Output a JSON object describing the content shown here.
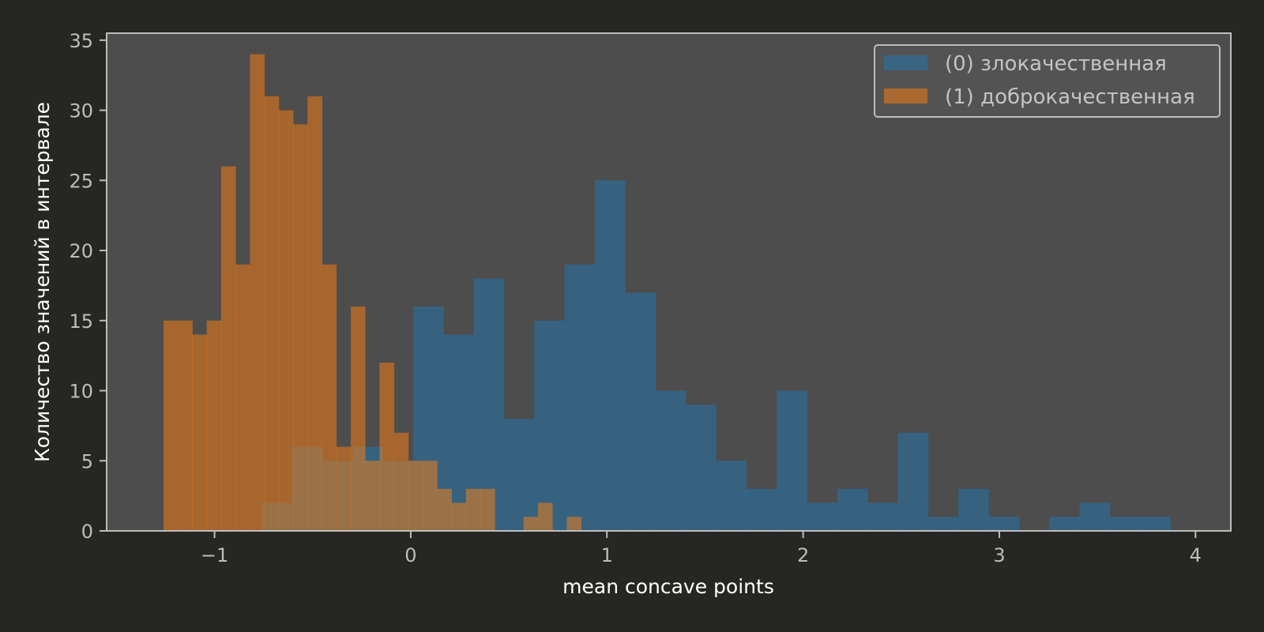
{
  "chart_data": {
    "type": "bar",
    "subtype": "histogram-overlay",
    "title": "",
    "xlabel": "mean concave points",
    "ylabel": "Количество значений в интервале",
    "xlim": [
      -1.55,
      4.18
    ],
    "ylim": [
      0,
      35.5
    ],
    "xticks": [
      -1,
      0,
      1,
      2,
      3,
      4
    ],
    "xtick_labels": [
      "−1",
      "0",
      "1",
      "2",
      "3",
      "4"
    ],
    "yticks": [
      0,
      5,
      10,
      15,
      20,
      25,
      30,
      35
    ],
    "grid": false,
    "legend": "top-right",
    "colors": {
      "figure_bg": "#262722",
      "plot_bg": "#4d4d4d",
      "frame": "#bdbdbd",
      "legend_bg": "#555555"
    },
    "series": [
      {
        "name": "(0) злокачественная",
        "color": "#1f77b4",
        "opacity": 0.5,
        "bin_start": -0.76,
        "bin_width": 0.1544,
        "counts": [
          2,
          6,
          5,
          6,
          5,
          16,
          14,
          18,
          8,
          15,
          19,
          25,
          17,
          10,
          9,
          5,
          3,
          10,
          2,
          3,
          2,
          7,
          1,
          3,
          1,
          0,
          1,
          2,
          1,
          1
        ]
      },
      {
        "name": "(1) доброкачественная",
        "color": "#ff7f0e",
        "opacity": 0.5,
        "bin_start": -1.26,
        "bin_width": 0.0734,
        "counts": [
          15,
          15,
          14,
          15,
          26,
          19,
          34,
          31,
          30,
          29,
          31,
          19,
          6,
          16,
          5,
          12,
          7,
          5,
          5,
          3,
          2,
          3,
          3,
          0,
          0,
          1,
          2,
          0,
          1,
          0
        ]
      }
    ]
  }
}
